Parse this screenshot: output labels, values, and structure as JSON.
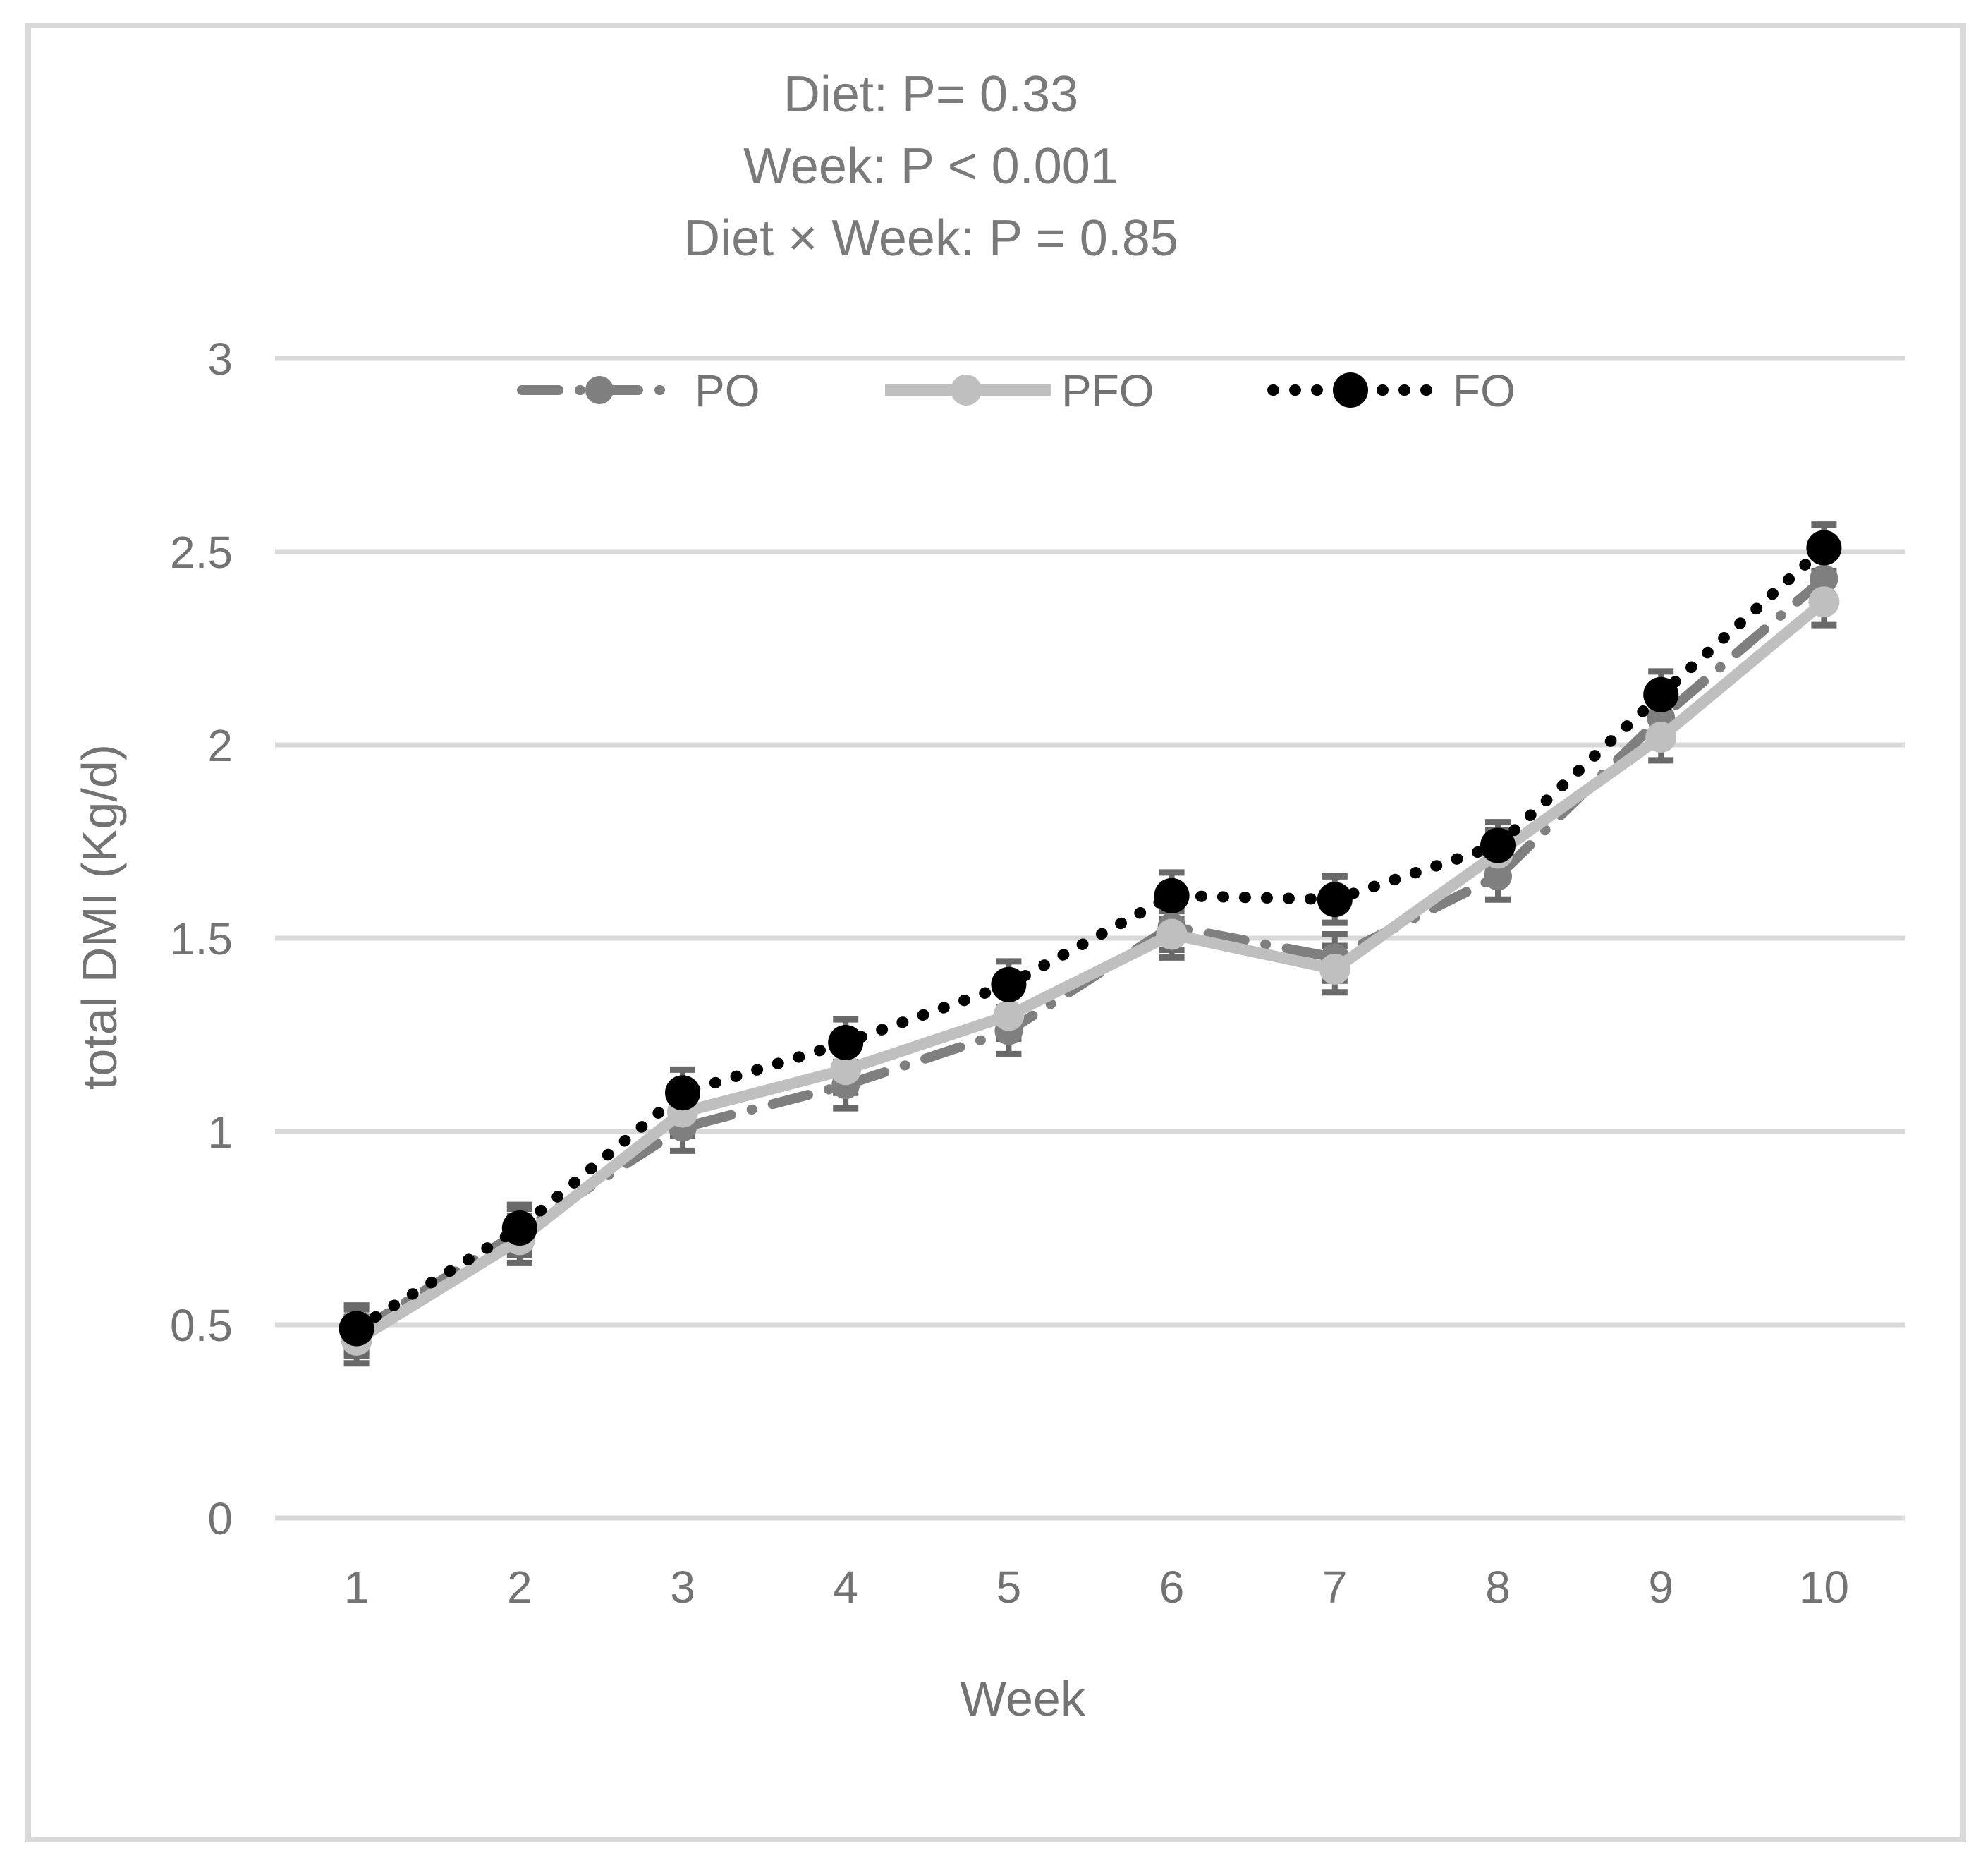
{
  "figure": {
    "background": "#ffffff",
    "border_color": "#d9d9d9"
  },
  "chart_data": {
    "type": "line",
    "title_lines": [
      "Diet: P= 0.33",
      "Week: P < 0.001",
      "Diet × Week: P = 0.85"
    ],
    "xlabel": "Week",
    "ylabel": "total DMI (Kg/d)",
    "categories": [
      1,
      2,
      3,
      4,
      5,
      6,
      7,
      8,
      9,
      10
    ],
    "x_tick_labels": [
      "1",
      "2",
      "3",
      "4",
      "5",
      "6",
      "7",
      "8",
      "9",
      "10"
    ],
    "y_tick_labels": [
      "0",
      "0.5",
      "1",
      "1.5",
      "2",
      "2.5",
      "3"
    ],
    "y_tick_values": [
      0,
      0.5,
      1,
      1.5,
      2,
      2.5,
      3
    ],
    "ylim": [
      0,
      3
    ],
    "grid": "horizontal-only",
    "legend_position": "top-inside",
    "error_bar_half_height": 0.06,
    "series": [
      {
        "name": "PO",
        "color": "#7f7f7f",
        "line_style": "dash-dot",
        "marker": "circle",
        "marker_radius": 20,
        "values": [
          0.48,
          0.74,
          1.01,
          1.12,
          1.26,
          1.53,
          1.45,
          1.66,
          2.07,
          2.43
        ]
      },
      {
        "name": "PFO",
        "color": "#bfbfbf",
        "line_style": "solid",
        "marker": "circle",
        "marker_radius": 22,
        "values": [
          0.46,
          0.72,
          1.05,
          1.16,
          1.3,
          1.51,
          1.42,
          1.72,
          2.02,
          2.37
        ]
      },
      {
        "name": "FO",
        "color": "#000000",
        "line_style": "dotted",
        "marker": "circle",
        "marker_radius": 25,
        "values": [
          0.49,
          0.75,
          1.1,
          1.23,
          1.38,
          1.61,
          1.6,
          1.74,
          2.13,
          2.51
        ]
      }
    ],
    "colors": {
      "gridline": "#d9d9d9",
      "tick_text": "#737373",
      "title_text": "#7a7a7a",
      "error_bar": "#696969"
    }
  }
}
